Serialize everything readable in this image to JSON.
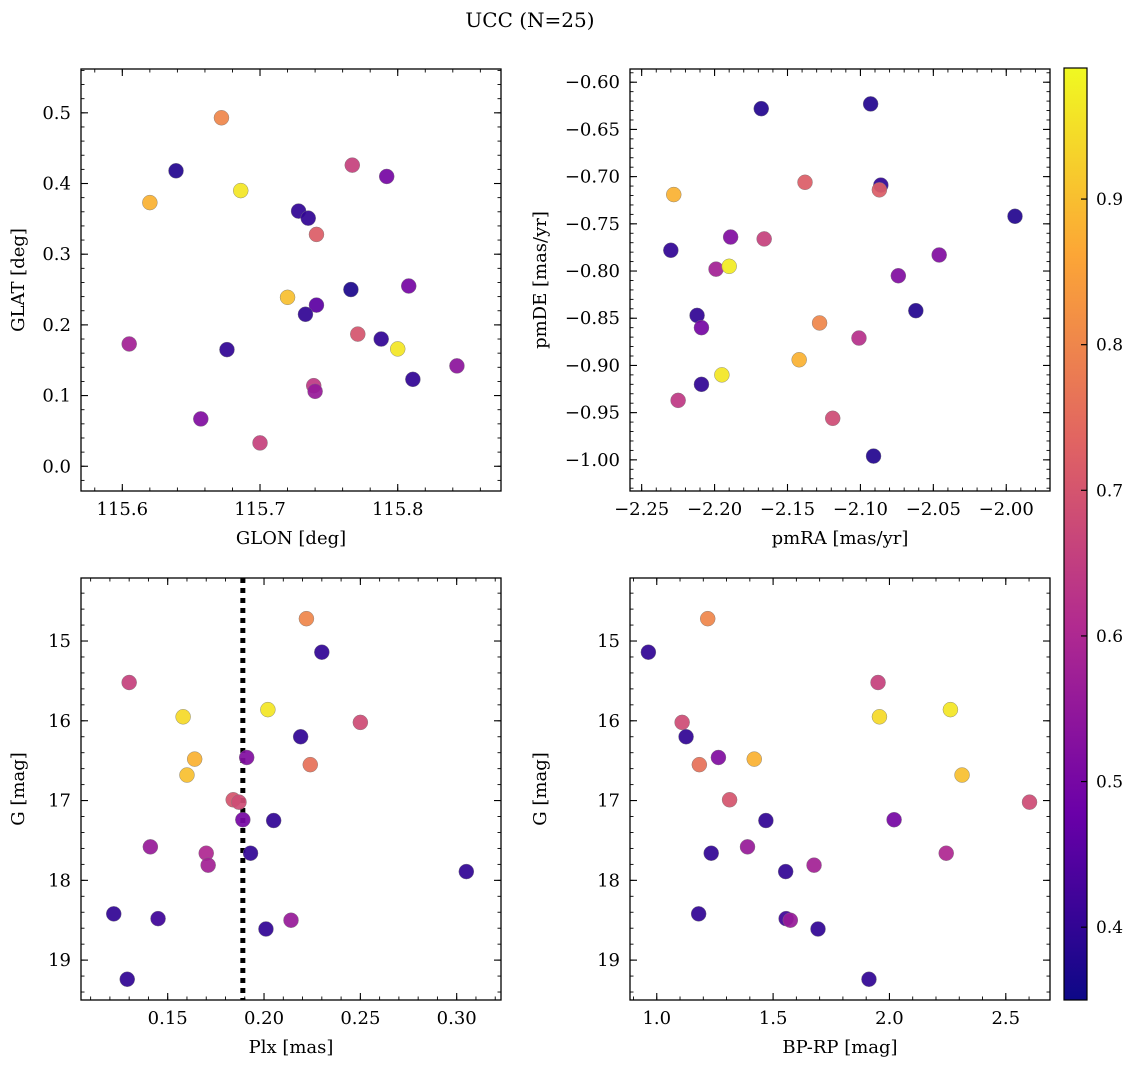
{
  "figure": {
    "title": "UCC (N=25)"
  },
  "colorbar": {
    "range": [
      0.35,
      0.99
    ],
    "ticks": [
      0.4,
      0.5,
      0.6,
      0.7,
      0.8,
      0.9
    ],
    "tick_labels": [
      "0.4",
      "0.5",
      "0.6",
      "0.7",
      "0.8",
      "0.9"
    ],
    "colormap": "plasma",
    "colormap_stops": [
      "#0d0887",
      "#6a00a8",
      "#b12a90",
      "#e16462",
      "#fca636",
      "#f0f921"
    ]
  },
  "chart_data": [
    {
      "type": "scatter",
      "id": "glon_glat",
      "title": "",
      "xlabel": "GLON [deg]",
      "ylabel": "GLAT [deg]",
      "xlim": [
        115.57,
        115.875
      ],
      "ylim": [
        -0.035,
        0.562
      ],
      "y_inverted": false,
      "xticks": [
        115.6,
        115.7,
        115.8
      ],
      "xtick_labels": [
        "115.6",
        "115.7",
        "115.8"
      ],
      "yticks": [
        0.0,
        0.1,
        0.2,
        0.3,
        0.4,
        0.5
      ],
      "ytick_labels": [
        "0.0",
        "0.1",
        "0.2",
        "0.3",
        "0.4",
        "0.5"
      ],
      "points": [
        {
          "x": 115.672,
          "y": 0.493,
          "c": 0.8
        },
        {
          "x": 115.639,
          "y": 0.418,
          "c": 0.38
        },
        {
          "x": 115.686,
          "y": 0.39,
          "c": 0.96
        },
        {
          "x": 115.62,
          "y": 0.373,
          "c": 0.88
        },
        {
          "x": 115.767,
          "y": 0.426,
          "c": 0.66
        },
        {
          "x": 115.792,
          "y": 0.41,
          "c": 0.5
        },
        {
          "x": 115.728,
          "y": 0.361,
          "c": 0.4
        },
        {
          "x": 115.735,
          "y": 0.351,
          "c": 0.4
        },
        {
          "x": 115.741,
          "y": 0.328,
          "c": 0.72
        },
        {
          "x": 115.72,
          "y": 0.239,
          "c": 0.9
        },
        {
          "x": 115.766,
          "y": 0.25,
          "c": 0.37
        },
        {
          "x": 115.808,
          "y": 0.255,
          "c": 0.5
        },
        {
          "x": 115.741,
          "y": 0.228,
          "c": 0.46
        },
        {
          "x": 115.733,
          "y": 0.215,
          "c": 0.4
        },
        {
          "x": 115.771,
          "y": 0.187,
          "c": 0.7
        },
        {
          "x": 115.788,
          "y": 0.18,
          "c": 0.4
        },
        {
          "x": 115.8,
          "y": 0.166,
          "c": 0.96
        },
        {
          "x": 115.605,
          "y": 0.173,
          "c": 0.58
        },
        {
          "x": 115.676,
          "y": 0.165,
          "c": 0.4
        },
        {
          "x": 115.843,
          "y": 0.142,
          "c": 0.54
        },
        {
          "x": 115.811,
          "y": 0.123,
          "c": 0.4
        },
        {
          "x": 115.739,
          "y": 0.114,
          "c": 0.64
        },
        {
          "x": 115.74,
          "y": 0.106,
          "c": 0.56
        },
        {
          "x": 115.657,
          "y": 0.067,
          "c": 0.52
        },
        {
          "x": 115.7,
          "y": 0.033,
          "c": 0.66
        }
      ]
    },
    {
      "type": "scatter",
      "id": "pmra_pmde",
      "title": "",
      "xlabel": "pmRA [mas/yr]",
      "ylabel": "pmDE [mas/yr]",
      "xlim": [
        -2.258,
        -1.97
      ],
      "ylim": [
        -1.033,
        -0.586
      ],
      "y_inverted": false,
      "xticks": [
        -2.25,
        -2.2,
        -2.15,
        -2.1,
        -2.05,
        -2.0
      ],
      "xtick_labels": [
        "−2.25",
        "−2.20",
        "−2.15",
        "−2.10",
        "−2.05",
        "−2.00"
      ],
      "yticks": [
        -1.0,
        -0.95,
        -0.9,
        -0.85,
        -0.8,
        -0.75,
        -0.7,
        -0.65,
        -0.6
      ],
      "ytick_labels": [
        "−1.00",
        "−0.95",
        "−0.90",
        "−0.85",
        "−0.80",
        "−0.75",
        "−0.70",
        "−0.65",
        "−0.60"
      ],
      "points": [
        {
          "x": -2.168,
          "y": -0.628,
          "c": 0.38
        },
        {
          "x": -2.093,
          "y": -0.623,
          "c": 0.38
        },
        {
          "x": -2.228,
          "y": -0.719,
          "c": 0.88
        },
        {
          "x": -2.138,
          "y": -0.706,
          "c": 0.72
        },
        {
          "x": -2.086,
          "y": -0.709,
          "c": 0.4
        },
        {
          "x": -2.087,
          "y": -0.714,
          "c": 0.72
        },
        {
          "x": -1.994,
          "y": -0.742,
          "c": 0.38
        },
        {
          "x": -2.23,
          "y": -0.778,
          "c": 0.4
        },
        {
          "x": -2.189,
          "y": -0.764,
          "c": 0.52
        },
        {
          "x": -2.166,
          "y": -0.766,
          "c": 0.66
        },
        {
          "x": -2.199,
          "y": -0.798,
          "c": 0.58
        },
        {
          "x": -2.19,
          "y": -0.795,
          "c": 0.97
        },
        {
          "x": -2.074,
          "y": -0.805,
          "c": 0.52
        },
        {
          "x": -2.046,
          "y": -0.783,
          "c": 0.52
        },
        {
          "x": -2.212,
          "y": -0.847,
          "c": 0.4
        },
        {
          "x": -2.209,
          "y": -0.86,
          "c": 0.5
        },
        {
          "x": -2.128,
          "y": -0.855,
          "c": 0.8
        },
        {
          "x": -2.062,
          "y": -0.842,
          "c": 0.38
        },
        {
          "x": -2.101,
          "y": -0.871,
          "c": 0.62
        },
        {
          "x": -2.142,
          "y": -0.894,
          "c": 0.88
        },
        {
          "x": -2.195,
          "y": -0.91,
          "c": 0.96
        },
        {
          "x": -2.209,
          "y": -0.92,
          "c": 0.4
        },
        {
          "x": -2.225,
          "y": -0.937,
          "c": 0.64
        },
        {
          "x": -2.119,
          "y": -0.956,
          "c": 0.68
        },
        {
          "x": -2.091,
          "y": -0.996,
          "c": 0.38
        }
      ]
    },
    {
      "type": "scatter",
      "id": "plx_g",
      "title": "",
      "xlabel": "Plx [mas]",
      "ylabel": "G [mag]",
      "xlim": [
        0.105,
        0.323
      ],
      "ylim": [
        14.21,
        19.5
      ],
      "y_inverted": true,
      "xticks": [
        0.15,
        0.2,
        0.25,
        0.3
      ],
      "xtick_labels": [
        "0.15",
        "0.20",
        "0.25",
        "0.30"
      ],
      "yticks": [
        15,
        16,
        17,
        18,
        19
      ],
      "ytick_labels": [
        "15",
        "16",
        "17",
        "18",
        "19"
      ],
      "vline": {
        "x": 0.189,
        "style": "dotted"
      },
      "points": [
        {
          "x": 0.222,
          "y": 14.72,
          "c": 0.8
        },
        {
          "x": 0.23,
          "y": 15.14,
          "c": 0.4
        },
        {
          "x": 0.13,
          "y": 15.52,
          "c": 0.66
        },
        {
          "x": 0.158,
          "y": 15.95,
          "c": 0.94
        },
        {
          "x": 0.202,
          "y": 15.86,
          "c": 0.96
        },
        {
          "x": 0.25,
          "y": 16.02,
          "c": 0.68
        },
        {
          "x": 0.219,
          "y": 16.2,
          "c": 0.4
        },
        {
          "x": 0.191,
          "y": 16.46,
          "c": 0.52
        },
        {
          "x": 0.164,
          "y": 16.48,
          "c": 0.88
        },
        {
          "x": 0.224,
          "y": 16.55,
          "c": 0.76
        },
        {
          "x": 0.16,
          "y": 16.68,
          "c": 0.9
        },
        {
          "x": 0.184,
          "y": 16.99,
          "c": 0.7
        },
        {
          "x": 0.187,
          "y": 17.02,
          "c": 0.68
        },
        {
          "x": 0.189,
          "y": 17.24,
          "c": 0.5
        },
        {
          "x": 0.205,
          "y": 17.25,
          "c": 0.4
        },
        {
          "x": 0.141,
          "y": 17.58,
          "c": 0.56
        },
        {
          "x": 0.17,
          "y": 17.66,
          "c": 0.6
        },
        {
          "x": 0.193,
          "y": 17.66,
          "c": 0.4
        },
        {
          "x": 0.171,
          "y": 17.81,
          "c": 0.58
        },
        {
          "x": 0.305,
          "y": 17.89,
          "c": 0.4
        },
        {
          "x": 0.122,
          "y": 18.42,
          "c": 0.4
        },
        {
          "x": 0.145,
          "y": 18.48,
          "c": 0.42
        },
        {
          "x": 0.214,
          "y": 18.5,
          "c": 0.56
        },
        {
          "x": 0.201,
          "y": 18.61,
          "c": 0.4
        },
        {
          "x": 0.129,
          "y": 19.24,
          "c": 0.4
        }
      ]
    },
    {
      "type": "scatter",
      "id": "bprp_g",
      "title": "",
      "xlabel": "BP-RP [mag]",
      "ylabel": "G [mag]",
      "xlim": [
        0.885,
        2.69
      ],
      "ylim": [
        14.21,
        19.5
      ],
      "y_inverted": true,
      "xticks": [
        1.0,
        1.5,
        2.0,
        2.5
      ],
      "xtick_labels": [
        "1.0",
        "1.5",
        "2.0",
        "2.5"
      ],
      "yticks": [
        15,
        16,
        17,
        18,
        19
      ],
      "ytick_labels": [
        "15",
        "16",
        "17",
        "18",
        "19"
      ],
      "points": [
        {
          "x": 1.219,
          "y": 14.72,
          "c": 0.8
        },
        {
          "x": 0.964,
          "y": 15.14,
          "c": 0.4
        },
        {
          "x": 1.951,
          "y": 15.52,
          "c": 0.66
        },
        {
          "x": 1.957,
          "y": 15.95,
          "c": 0.94
        },
        {
          "x": 2.262,
          "y": 15.86,
          "c": 0.96
        },
        {
          "x": 1.109,
          "y": 16.02,
          "c": 0.68
        },
        {
          "x": 1.126,
          "y": 16.2,
          "c": 0.4
        },
        {
          "x": 1.265,
          "y": 16.46,
          "c": 0.52
        },
        {
          "x": 1.419,
          "y": 16.48,
          "c": 0.88
        },
        {
          "x": 1.183,
          "y": 16.55,
          "c": 0.76
        },
        {
          "x": 2.312,
          "y": 16.68,
          "c": 0.9
        },
        {
          "x": 1.313,
          "y": 16.99,
          "c": 0.7
        },
        {
          "x": 2.602,
          "y": 17.02,
          "c": 0.68
        },
        {
          "x": 2.02,
          "y": 17.24,
          "c": 0.5
        },
        {
          "x": 1.469,
          "y": 17.25,
          "c": 0.4
        },
        {
          "x": 1.39,
          "y": 17.58,
          "c": 0.56
        },
        {
          "x": 2.244,
          "y": 17.66,
          "c": 0.6
        },
        {
          "x": 1.234,
          "y": 17.66,
          "c": 0.4
        },
        {
          "x": 1.676,
          "y": 17.81,
          "c": 0.58
        },
        {
          "x": 1.554,
          "y": 17.89,
          "c": 0.4
        },
        {
          "x": 1.18,
          "y": 18.42,
          "c": 0.4
        },
        {
          "x": 1.556,
          "y": 18.48,
          "c": 0.42
        },
        {
          "x": 1.574,
          "y": 18.5,
          "c": 0.56
        },
        {
          "x": 1.693,
          "y": 18.61,
          "c": 0.4
        },
        {
          "x": 1.912,
          "y": 19.24,
          "c": 0.4
        }
      ]
    }
  ]
}
